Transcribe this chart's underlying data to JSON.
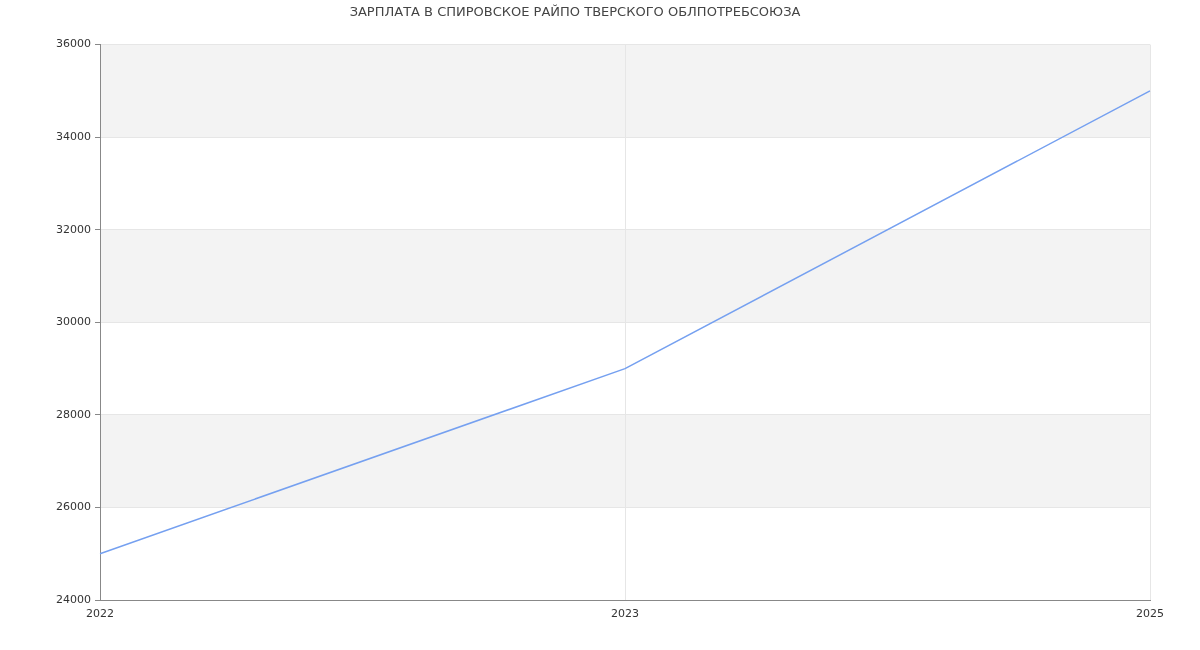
{
  "chart_data": {
    "type": "line",
    "title": "ЗАРПЛАТА В СПИРОВСКОЕ РАЙПО ТВЕРСКОГО ОБЛПОТРЕБСОЮЗА",
    "categories": [
      "2022",
      "2023",
      "2025"
    ],
    "series": [
      {
        "color": "#75a0f0",
        "values": [
          25000,
          29000,
          35000
        ]
      }
    ],
    "ylim": [
      24000,
      36000
    ],
    "yticks": [
      24000,
      26000,
      28000,
      30000,
      32000,
      34000,
      36000
    ],
    "grid": true,
    "marker": "none",
    "bands": [
      {
        "axis": "y",
        "from": 26000,
        "to": 28000,
        "color": "#f3f3f3"
      },
      {
        "axis": "y",
        "from": 30000,
        "to": 32000,
        "color": "#f3f3f3"
      },
      {
        "axis": "y",
        "from": 34000,
        "to": 36000,
        "color": "#f3f3f3"
      }
    ]
  }
}
